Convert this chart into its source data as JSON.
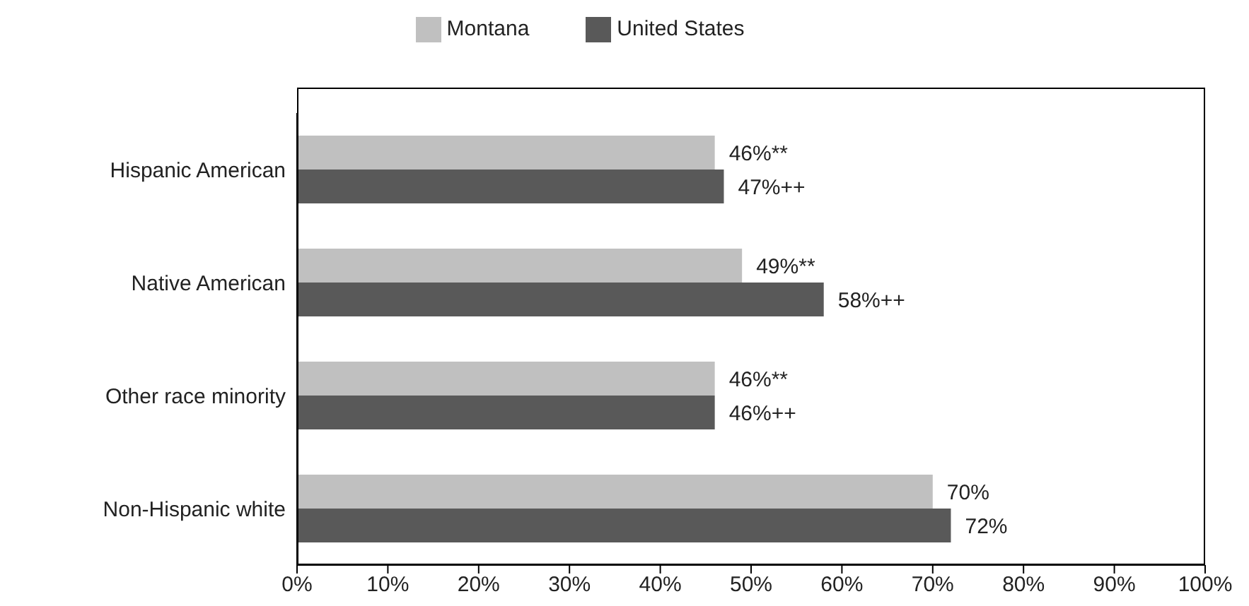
{
  "chart_data": {
    "type": "bar",
    "orientation": "horizontal",
    "categories": [
      "Hispanic American",
      "Native American",
      "Other race minority",
      "Non-Hispanic white"
    ],
    "series": [
      {
        "name": "Montana",
        "color": "#c0c0c0",
        "values": [
          46,
          49,
          46,
          70
        ],
        "value_labels": [
          "46%**",
          "49%**",
          "46%**",
          "70%"
        ]
      },
      {
        "name": "United States",
        "color": "#595959",
        "values": [
          47,
          58,
          46,
          72
        ],
        "value_labels": [
          "47%++",
          "58%++",
          "46%++",
          "72%"
        ]
      }
    ],
    "xlim": [
      0,
      100
    ],
    "xticks": [
      {
        "value": 0,
        "label": "0%"
      },
      {
        "value": 10,
        "label": "10%"
      },
      {
        "value": 20,
        "label": "20%"
      },
      {
        "value": 30,
        "label": "30%"
      },
      {
        "value": 40,
        "label": "40%"
      },
      {
        "value": 50,
        "label": "50%"
      },
      {
        "value": 60,
        "label": "60%"
      },
      {
        "value": 70,
        "label": "70%"
      },
      {
        "value": 80,
        "label": "80%"
      },
      {
        "value": 90,
        "label": "90%"
      },
      {
        "value": 100,
        "label": "100%"
      }
    ],
    "grid": false,
    "legend": "top"
  }
}
